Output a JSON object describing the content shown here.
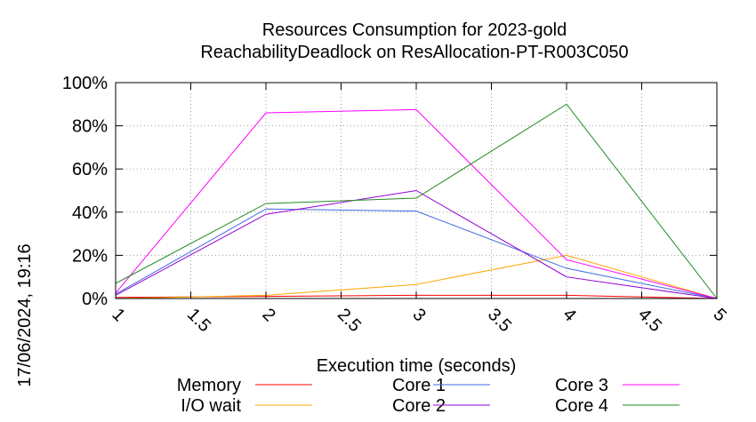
{
  "chart_data": {
    "type": "line",
    "title": "Resources Consumption for 2023-gold",
    "subtitle": "ReachabilityDeadlock on ResAllocation-PT-R003C050",
    "xlabel": "Execution time (seconds)",
    "ylabel": "",
    "side_label": "17/06/2024, 19:16",
    "xlim": [
      1,
      5
    ],
    "ylim": [
      0,
      100
    ],
    "x_ticks": [
      1,
      1.5,
      2,
      2.5,
      3,
      3.5,
      4,
      4.5,
      5
    ],
    "x_tick_labels": [
      "1",
      "1.5",
      "2",
      "2.5",
      "3",
      "3.5",
      "4",
      "4.5",
      "5"
    ],
    "y_ticks": [
      0,
      20,
      40,
      60,
      80,
      100
    ],
    "y_tick_labels": [
      "0%",
      "20%",
      "40%",
      "60%",
      "80%",
      "100%"
    ],
    "grid": true,
    "legend_position": "bottom",
    "x": [
      1,
      2,
      3,
      4,
      5
    ],
    "series": [
      {
        "name": "Memory",
        "color": "#ff0000",
        "values": [
          0.5,
          1,
          1.5,
          1.5,
          0
        ]
      },
      {
        "name": "I/O wait",
        "color": "#ffa500",
        "values": [
          0,
          1.5,
          6.5,
          20,
          0
        ]
      },
      {
        "name": "Core 1",
        "color": "#4169e1",
        "values": [
          2,
          41.5,
          40.5,
          14,
          0
        ]
      },
      {
        "name": "Core 2",
        "color": "#9400d3",
        "values": [
          1.5,
          39,
          50,
          10,
          0
        ]
      },
      {
        "name": "Core 3",
        "color": "#ff00ff",
        "values": [
          2.5,
          86,
          87.5,
          18,
          0
        ]
      },
      {
        "name": "Core 4",
        "color": "#228b22",
        "values": [
          7,
          44,
          46.5,
          90,
          0
        ]
      }
    ]
  }
}
